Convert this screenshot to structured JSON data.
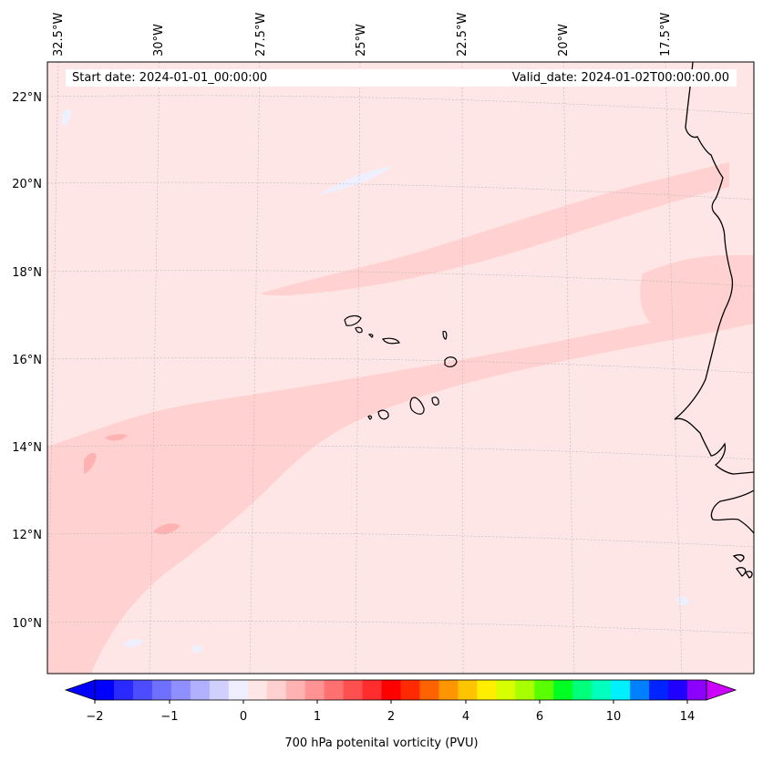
{
  "map": {
    "longitude_labels": [
      "32.5°W",
      "30°W",
      "27.5°W",
      "25°W",
      "22.5°W",
      "20°W",
      "17.5°W"
    ],
    "latitude_labels": [
      "22°N",
      "20°N",
      "18°N",
      "16°N",
      "14°N",
      "12°N",
      "10°N"
    ],
    "start_date_text": "Start date: 2024-01-01_00:00:00",
    "valid_date_text": "Valid_date: 2024-01-02T00:00:00.00",
    "field_colors": {
      "background": "#ffe6e6",
      "band": "#ffd1d1",
      "patch": "#ffb2b2",
      "negative": "#eef0ff",
      "coastline": "#000000"
    }
  },
  "colorbar": {
    "label": "700 hPa potenital vorticity (PVU)",
    "tick_labels": [
      "−2",
      "−1",
      "0",
      "1",
      "2",
      "4",
      "6",
      "10",
      "14"
    ],
    "colors": [
      "#0000ff",
      "#2a2aff",
      "#4d4dff",
      "#7070ff",
      "#8f8fff",
      "#b0b0ff",
      "#d0d0ff",
      "#eeeeff",
      "#ffe6e6",
      "#ffd0d0",
      "#ffb2b2",
      "#ff9393",
      "#ff7070",
      "#ff5050",
      "#ff2d2d",
      "#ff0000",
      "#ff2a00",
      "#ff6200",
      "#ff9600",
      "#ffc400",
      "#ffee00",
      "#d8ff00",
      "#a8ff00",
      "#5aff00",
      "#00ff22",
      "#00ff7a",
      "#00ffbe",
      "#00f0ff",
      "#0080ff",
      "#0024ff",
      "#2000ff",
      "#8c00ff"
    ],
    "extend_min_color": "#0000ff",
    "extend_max_color": "#cc00ff"
  }
}
